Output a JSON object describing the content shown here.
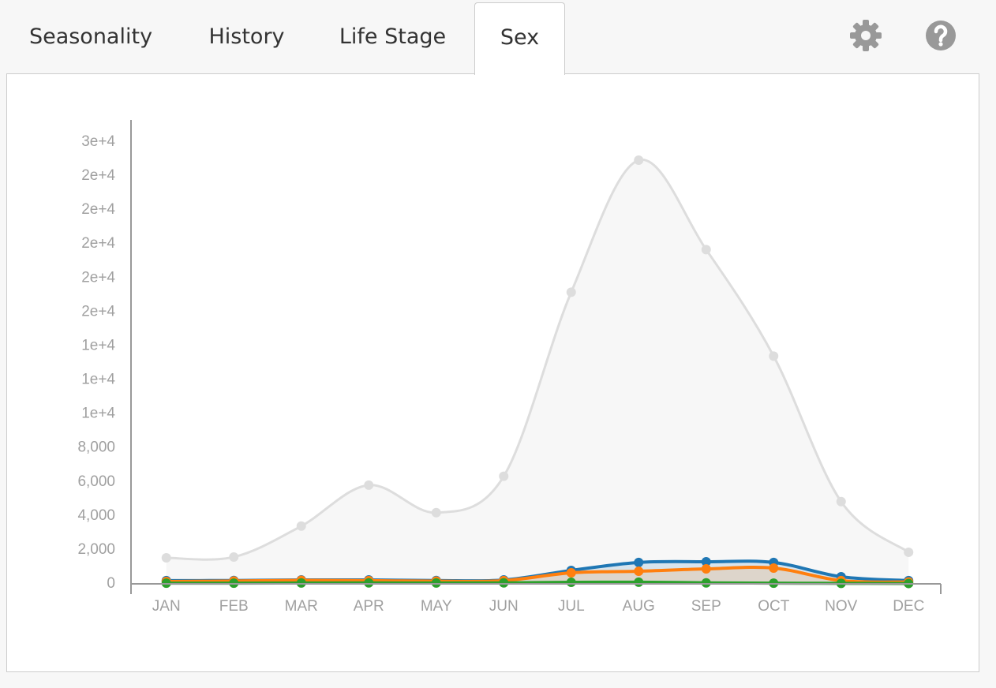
{
  "tabs": [
    "Seasonality",
    "History",
    "Life Stage",
    "Sex"
  ],
  "chart_data": {
    "type": "area",
    "categories": [
      "JAN",
      "FEB",
      "MAR",
      "APR",
      "MAY",
      "JUN",
      "JUL",
      "AUG",
      "SEP",
      "OCT",
      "NOV",
      "DEC"
    ],
    "series": [
      {
        "color": "#dddddd",
        "values": [
          1530,
          1580,
          3400,
          5810,
          4190,
          6330,
          17160,
          24930,
          19670,
          13400,
          4840,
          1860
        ]
      },
      {
        "color": "#1f77b4",
        "values": [
          190,
          200,
          230,
          230,
          200,
          230,
          790,
          1260,
          1300,
          1260,
          420,
          190
        ]
      },
      {
        "color": "#ff7f0e",
        "values": [
          140,
          170,
          210,
          190,
          160,
          190,
          650,
          740,
          880,
          930,
          190,
          110
        ]
      },
      {
        "color": "#2ca02c",
        "values": [
          40,
          40,
          50,
          60,
          50,
          60,
          90,
          100,
          60,
          40,
          30,
          20
        ]
      }
    ],
    "ylim": [
      0,
      27300
    ],
    "yticks": [
      0,
      {
        "value": 2000,
        "label": "2,000"
      },
      {
        "value": 4000,
        "label": "4,000"
      },
      {
        "value": 6000,
        "label": "6,000"
      },
      {
        "value": 8000,
        "label": "8,000"
      },
      {
        "value": 10000,
        "label": "1e+4"
      },
      {
        "value": 12000,
        "label": "1e+4"
      },
      {
        "value": 14000,
        "label": "1e+4"
      },
      {
        "value": 16000,
        "label": "2e+4"
      },
      {
        "value": 18000,
        "label": "2e+4"
      },
      {
        "value": 20000,
        "label": "2e+4"
      },
      {
        "value": 22000,
        "label": "2e+4"
      },
      {
        "value": 24000,
        "label": "2e+4"
      },
      {
        "value": 26000,
        "label": "3e+4"
      }
    ]
  }
}
